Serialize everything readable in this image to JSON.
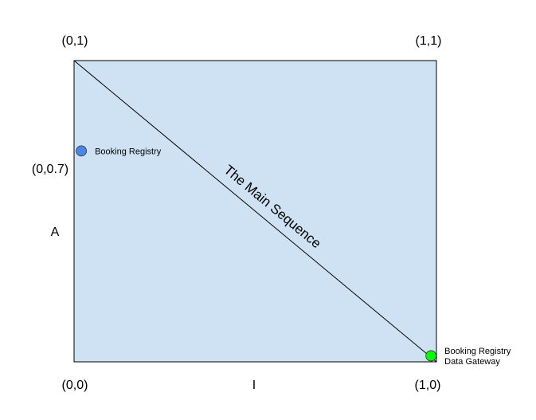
{
  "chart_data": {
    "type": "scatter",
    "xlabel": "I",
    "ylabel": "A",
    "xlim": [
      0,
      1
    ],
    "ylim": [
      0,
      1
    ],
    "grid": false,
    "plot_background": "#cfe2f3",
    "corner_labels": {
      "top_left": "(0,1)",
      "top_right": "(1,1)",
      "bottom_left": "(0,0)",
      "bottom_right": "(1,0)"
    },
    "tick_label_y": "(0,0.7)",
    "line": {
      "label": "The Main Sequence",
      "from": [
        0,
        1
      ],
      "to": [
        1,
        0
      ],
      "color": "#000000"
    },
    "points": [
      {
        "x": 0.02,
        "y": 0.7,
        "label_lines": [
          "Booking Registry"
        ],
        "color": "#4a86e8"
      },
      {
        "x": 0.985,
        "y": 0.02,
        "label_lines": [
          "Booking Registry",
          "Data Gateway"
        ],
        "color": "#00ff00"
      }
    ]
  }
}
